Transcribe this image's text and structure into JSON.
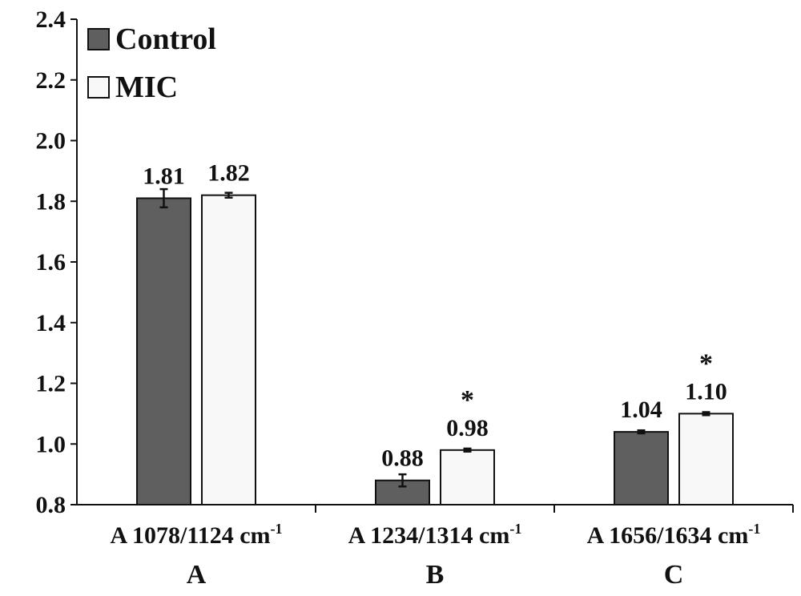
{
  "chart_data": {
    "type": "bar",
    "categories": [
      "A 1078/1124 cm",
      "A 1234/1314 cm",
      "A 1656/1634 cm"
    ],
    "category_superscript": "-1",
    "group_letters": [
      "A",
      "B",
      "C"
    ],
    "series": [
      {
        "name": "Control",
        "color": "#5f5f5f",
        "values": [
          1.81,
          0.88,
          1.04
        ],
        "errors": [
          0.03,
          0.02,
          0.005
        ],
        "value_labels": [
          "1.81",
          "0.88",
          "1.04"
        ]
      },
      {
        "name": "MIC",
        "color": "#f8f8f8",
        "values": [
          1.82,
          0.98,
          1.1
        ],
        "errors": [
          0.008,
          0.005,
          0.005
        ],
        "value_labels": [
          "1.82",
          "0.98",
          "1.10"
        ]
      }
    ],
    "significance": [
      {
        "category": 1,
        "series": 1,
        "mark": "*"
      },
      {
        "category": 2,
        "series": 1,
        "mark": "*"
      }
    ],
    "ylim": [
      0.8,
      2.4
    ],
    "yticks": [
      "0.8",
      "1.0",
      "1.2",
      "1.4",
      "1.6",
      "1.8",
      "2.0",
      "2.2",
      "2.4"
    ],
    "ytick_values": [
      0.8,
      1.0,
      1.2,
      1.4,
      1.6,
      1.8,
      2.0,
      2.2,
      2.4
    ],
    "title": "",
    "xlabel": "",
    "ylabel": "",
    "legend_position": "top-left",
    "grid": false
  }
}
